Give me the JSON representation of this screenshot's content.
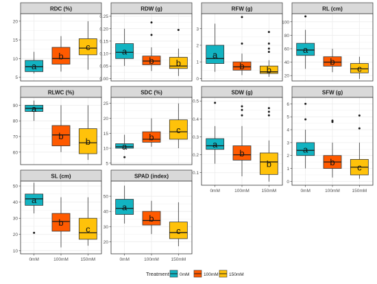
{
  "colors": {
    "strip_bg": "#d9d9d9",
    "panel_border": "#333333",
    "grid": "#ebebeb",
    "treatments": {
      "0mM": "#12b3c1",
      "100mM": "#ff5a00",
      "150mM": "#ffc20a"
    }
  },
  "chart_data": {
    "type": "boxplot",
    "facet_layout": "4 columns x 3 rows",
    "x_categories": [
      "0mM",
      "100mM",
      "150mM"
    ],
    "xlabel": "",
    "ylabel": "",
    "grid": true,
    "legend": {
      "title": "Treatment",
      "placement": "bottom",
      "items": [
        {
          "label": "0mM",
          "color": "#12b3c1"
        },
        {
          "label": "100mM",
          "color": "#ff5a00"
        },
        {
          "label": "150mM",
          "color": "#ffc20a"
        }
      ]
    },
    "panels": [
      {
        "title": "RDC (%)",
        "ylim": [
          4,
          22
        ],
        "yticks": [
          5,
          10,
          15,
          20
        ],
        "show_x_ticks": false,
        "boxes": [
          {
            "group": "0mM",
            "whisker_low": 6.0,
            "q1": 6.5,
            "median": 7.8,
            "q3": 9.5,
            "whisker_high": 11.8,
            "outliers": [],
            "letter": "a"
          },
          {
            "group": "100mM",
            "whisker_low": 6.5,
            "q1": 8.5,
            "median": 10.0,
            "q3": 13.0,
            "whisker_high": 16.0,
            "outliers": [],
            "letter": "b"
          },
          {
            "group": "150mM",
            "whisker_low": 7.0,
            "q1": 11.0,
            "median": 12.8,
            "q3": 15.3,
            "whisker_high": 20.0,
            "outliers": [],
            "letter": "c"
          }
        ]
      },
      {
        "title": "RDW (g)",
        "ylim": [
          -0.01,
          0.26
        ],
        "yticks": [
          0.0,
          0.05,
          0.1,
          0.15,
          0.2,
          0.25
        ],
        "show_x_ticks": false,
        "boxes": [
          {
            "group": "0mM",
            "whisker_low": 0.05,
            "q1": 0.08,
            "median": 0.105,
            "q3": 0.14,
            "whisker_high": 0.2,
            "outliers": [],
            "letter": "a"
          },
          {
            "group": "100mM",
            "whisker_low": 0.03,
            "q1": 0.055,
            "median": 0.07,
            "q3": 0.09,
            "whisker_high": 0.125,
            "outliers": [
              0.175,
              0.225
            ],
            "letter": "b"
          },
          {
            "group": "150mM",
            "whisker_low": 0.01,
            "q1": 0.04,
            "median": 0.05,
            "q3": 0.085,
            "whisker_high": 0.12,
            "outliers": [
              0.195
            ],
            "letter": "b"
          }
        ]
      },
      {
        "title": "RFW (g)",
        "ylim": [
          -0.15,
          3.9
        ],
        "yticks": [
          0,
          1,
          2,
          3
        ],
        "show_x_ticks": false,
        "boxes": [
          {
            "group": "0mM",
            "whisker_low": 0.4,
            "q1": 0.9,
            "median": 1.2,
            "q3": 2.0,
            "whisker_high": 3.3,
            "outliers": [],
            "letter": "a"
          },
          {
            "group": "100mM",
            "whisker_low": 0.2,
            "q1": 0.5,
            "median": 0.7,
            "q3": 1.0,
            "whisker_high": 1.5,
            "outliers": [
              2.1,
              3.7
            ],
            "letter": "b"
          },
          {
            "group": "150mM",
            "whisker_low": 0.1,
            "q1": 0.3,
            "median": 0.4,
            "q3": 0.75,
            "whisker_high": 1.1,
            "outliers": [
              1.6,
              1.8,
              2.1,
              2.8
            ],
            "letter": "b"
          }
        ]
      },
      {
        "title": "RL (cm)",
        "ylim": [
          12,
          112
        ],
        "yticks": [
          20,
          40,
          60,
          80,
          100
        ],
        "show_x_ticks": false,
        "boxes": [
          {
            "group": "0mM",
            "whisker_low": 30,
            "q1": 50,
            "median": 58,
            "q3": 68,
            "whisker_high": 88,
            "outliers": [
              108
            ],
            "letter": "a"
          },
          {
            "group": "100mM",
            "whisker_low": 25,
            "q1": 34,
            "median": 40,
            "q3": 48,
            "whisker_high": 60,
            "outliers": [],
            "letter": "b"
          },
          {
            "group": "150mM",
            "whisker_low": 15,
            "q1": 24,
            "median": 30,
            "q3": 38,
            "whisker_high": 48,
            "outliers": [],
            "letter": "c"
          }
        ]
      },
      {
        "title": "RLWC (%)",
        "ylim": [
          52,
          95
        ],
        "yticks": [
          60,
          70,
          80,
          90
        ],
        "show_x_ticks": false,
        "boxes": [
          {
            "group": "0mM",
            "whisker_low": 80,
            "q1": 86,
            "median": 88,
            "q3": 90,
            "whisker_high": 93,
            "outliers": [],
            "letter": "a"
          },
          {
            "group": "100mM",
            "whisker_low": 60,
            "q1": 64,
            "median": 71,
            "q3": 77,
            "whisker_high": 90,
            "outliers": [],
            "letter": "b"
          },
          {
            "group": "150mM",
            "whisker_low": 55,
            "q1": 59,
            "median": 66,
            "q3": 75,
            "whisker_high": 90,
            "outliers": [],
            "letter": "b"
          }
        ]
      },
      {
        "title": "SDC (%)",
        "ylim": [
          4.5,
          27
        ],
        "yticks": [
          5,
          10,
          15,
          20,
          25
        ],
        "show_x_ticks": false,
        "boxes": [
          {
            "group": "0mM",
            "whisker_low": 9.5,
            "q1": 10.0,
            "median": 10.5,
            "q3": 11.5,
            "whisker_high": 14.5,
            "outliers": [
              7.0
            ],
            "letter": "a"
          },
          {
            "group": "100mM",
            "whisker_low": 10.5,
            "q1": 12.0,
            "median": 13.0,
            "q3": 15.5,
            "whisker_high": 20.0,
            "outliers": [],
            "letter": "b"
          },
          {
            "group": "150mM",
            "whisker_low": 10.0,
            "q1": 13.0,
            "median": 15.5,
            "q3": 19.5,
            "whisker_high": 25.0,
            "outliers": [],
            "letter": "c"
          }
        ]
      },
      {
        "title": "SDW (g)",
        "ylim": [
          0.03,
          0.52
        ],
        "yticks": [
          0.1,
          0.2,
          0.3,
          0.4,
          0.5
        ],
        "show_x_ticks": true,
        "boxes": [
          {
            "group": "0mM",
            "whisker_low": 0.15,
            "q1": 0.23,
            "median": 0.25,
            "q3": 0.29,
            "whisker_high": 0.36,
            "outliers": [
              0.49
            ],
            "letter": "a"
          },
          {
            "group": "100mM",
            "whisker_low": 0.08,
            "q1": 0.17,
            "median": 0.2,
            "q3": 0.25,
            "whisker_high": 0.36,
            "outliers": [
              0.42,
              0.45,
              0.47
            ],
            "letter": "b"
          },
          {
            "group": "150mM",
            "whisker_low": 0.05,
            "q1": 0.09,
            "median": 0.16,
            "q3": 0.21,
            "whisker_high": 0.28,
            "outliers": [
              0.42,
              0.44,
              0.46
            ],
            "letter": "b"
          }
        ]
      },
      {
        "title": "SFW (g)",
        "ylim": [
          -0.3,
          6.5
        ],
        "yticks": [
          0,
          1,
          2,
          3,
          4,
          5,
          6
        ],
        "show_x_ticks": true,
        "boxes": [
          {
            "group": "0mM",
            "whisker_low": 1.0,
            "q1": 2.0,
            "median": 2.4,
            "q3": 3.0,
            "whisker_high": 4.0,
            "outliers": [
              4.8,
              6.0
            ],
            "letter": "a"
          },
          {
            "group": "100mM",
            "whisker_low": 0.3,
            "q1": 1.0,
            "median": 1.5,
            "q3": 2.0,
            "whisker_high": 3.0,
            "outliers": [
              4.6,
              4.7
            ],
            "letter": "b"
          },
          {
            "group": "150mM",
            "whisker_low": 0.2,
            "q1": 0.5,
            "median": 1.1,
            "q3": 1.7,
            "whisker_high": 3.0,
            "outliers": [
              4.1,
              5.1
            ],
            "letter": "c"
          }
        ]
      },
      {
        "title": "SL (cm)",
        "ylim": [
          8,
          53
        ],
        "yticks": [
          10,
          20,
          30,
          40,
          50
        ],
        "show_x_ticks": true,
        "boxes": [
          {
            "group": "0mM",
            "whisker_low": 33,
            "q1": 38,
            "median": 42,
            "q3": 45,
            "whisker_high": 52,
            "outliers": [
              21
            ],
            "letter": "a"
          },
          {
            "group": "100mM",
            "whisker_low": 12,
            "q1": 22,
            "median": 28,
            "q3": 33,
            "whisker_high": 43,
            "outliers": [],
            "letter": "b"
          },
          {
            "group": "150mM",
            "whisker_low": 13,
            "q1": 17,
            "median": 21,
            "q3": 30,
            "whisker_high": 43,
            "outliers": [],
            "letter": "c"
          }
        ]
      },
      {
        "title": "SPAD (index)",
        "ylim": [
          12,
          60
        ],
        "yticks": [
          20,
          30,
          40,
          50
        ],
        "show_x_ticks": true,
        "boxes": [
          {
            "group": "0mM",
            "whisker_low": 32,
            "q1": 38,
            "median": 42,
            "q3": 48,
            "whisker_high": 57,
            "outliers": [],
            "letter": "a"
          },
          {
            "group": "100mM",
            "whisker_low": 25,
            "q1": 31,
            "median": 34,
            "q3": 40,
            "whisker_high": 47,
            "outliers": [],
            "letter": "b"
          },
          {
            "group": "150mM",
            "whisker_low": 17,
            "q1": 22,
            "median": 26,
            "q3": 33,
            "whisker_high": 46,
            "outliers": [],
            "letter": "c"
          }
        ]
      }
    ]
  }
}
